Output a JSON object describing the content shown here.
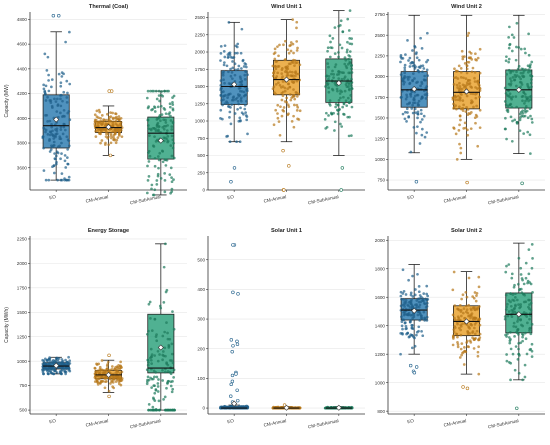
{
  "chart_data": [
    {
      "type": "box",
      "title": "Thermal (Coal)",
      "ylabel": "Capacity (MW)",
      "categories": [
        "EO",
        "CM-Annual",
        "CM-SubAnnual"
      ],
      "ylim": [
        3420,
        4860
      ],
      "yticks": [
        3600,
        3800,
        4000,
        4200,
        4400,
        4600,
        4800
      ],
      "series": [
        {
          "category": "EO",
          "whisker_low": 3500,
          "q1": 3760,
          "median": 3940,
          "q3": 4190,
          "whisker_high": 4700,
          "mean": 3990,
          "outliers": [
            4830,
            4830
          ]
        },
        {
          "category": "CM-Annual",
          "whisker_low": 3700,
          "q1": 3885,
          "median": 3925,
          "q3": 3975,
          "whisker_high": 4100,
          "mean": 3930,
          "outliers": [
            4220,
            4220,
            3700
          ]
        },
        {
          "category": "CM-SubAnnual",
          "whisker_low": 3380,
          "q1": 3670,
          "median": 3880,
          "q3": 4010,
          "whisker_high": 4220,
          "mean": 3820,
          "outliers": []
        }
      ]
    },
    {
      "type": "box",
      "title": "Wind Unit 1",
      "ylabel": "",
      "categories": [
        "EO",
        "CM-Annual",
        "CM-SubAnnual"
      ],
      "ylim": [
        0,
        2580
      ],
      "yticks": [
        0,
        250,
        500,
        750,
        1000,
        1250,
        1500,
        1750,
        2000,
        2250,
        2500
      ],
      "series": [
        {
          "category": "EO",
          "whisker_low": 700,
          "q1": 1240,
          "median": 1500,
          "q3": 1730,
          "whisker_high": 2430,
          "mean": 1530,
          "outliers": [
            120,
            320
          ]
        },
        {
          "category": "CM-Annual",
          "whisker_low": 700,
          "q1": 1380,
          "median": 1600,
          "q3": 1880,
          "whisker_high": 2470,
          "mean": 1600,
          "outliers": [
            0,
            0,
            350,
            570
          ]
        },
        {
          "category": "CM-SubAnnual",
          "whisker_low": 500,
          "q1": 1270,
          "median": 1580,
          "q3": 1900,
          "whisker_high": 2600,
          "mean": 1550,
          "outliers": [
            0,
            320
          ]
        }
      ]
    },
    {
      "type": "box",
      "title": "Wind Unit 2",
      "ylabel": "",
      "categories": [
        "EO",
        "CM-Annual",
        "CM-SubAnnual"
      ],
      "ylim": [
        630,
        2780
      ],
      "yticks": [
        750,
        1000,
        1250,
        1500,
        1750,
        2000,
        2250,
        2500,
        2750
      ],
      "series": [
        {
          "category": "EO",
          "whisker_low": 1080,
          "q1": 1630,
          "median": 1840,
          "q3": 2060,
          "whisker_high": 2740,
          "mean": 1850,
          "outliers": [
            730
          ]
        },
        {
          "category": "CM-Annual",
          "whisker_low": 1000,
          "q1": 1610,
          "median": 1810,
          "q3": 2060,
          "whisker_high": 2740,
          "mean": 1820,
          "outliers": [
            720
          ]
        },
        {
          "category": "CM-SubAnnual",
          "whisker_low": 1070,
          "q1": 1620,
          "median": 1840,
          "q3": 2080,
          "whisker_high": 2740,
          "mean": 1840,
          "outliers": [
            710
          ]
        }
      ]
    },
    {
      "type": "box",
      "title": "Energy Storage",
      "ylabel": "Capacity (MWh)",
      "categories": [
        "EO",
        "CM-Annual",
        "CM-SubAnnual"
      ],
      "ylim": [
        460,
        2280
      ],
      "yticks": [
        500,
        750,
        1000,
        1250,
        1500,
        1750,
        2000,
        2250
      ],
      "series": [
        {
          "category": "EO",
          "whisker_low": 870,
          "q1": 920,
          "median": 950,
          "q3": 985,
          "whisker_high": 1040,
          "mean": 955,
          "outliers": []
        },
        {
          "category": "CM-Annual",
          "whisker_low": 680,
          "q1": 820,
          "median": 860,
          "q3": 905,
          "whisker_high": 1010,
          "mean": 860,
          "outliers": [
            1060,
            640
          ]
        },
        {
          "category": "CM-SubAnnual",
          "whisker_low": 500,
          "q1": 880,
          "median": 930,
          "q3": 1480,
          "whisker_high": 2200,
          "mean": 1140,
          "outliers": []
        }
      ]
    },
    {
      "type": "box",
      "title": "Solar Unit 1",
      "ylabel": "",
      "categories": [
        "EO",
        "CM-Annual",
        "CM-SubAnnual"
      ],
      "ylim": [
        -20,
        580
      ],
      "yticks": [
        0,
        100,
        200,
        300,
        400,
        500
      ],
      "series": [
        {
          "category": "EO",
          "whisker_low": 0,
          "q1": 0,
          "median": 0,
          "q3": 5,
          "whisker_high": 10,
          "mean": 15,
          "outliers": [
            550,
            550,
            390,
            385,
            230,
            225,
            215,
            210,
            190,
            120,
            115,
            110,
            90,
            80,
            60,
            40,
            25,
            20
          ]
        },
        {
          "category": "CM-Annual",
          "whisker_low": 0,
          "q1": 0,
          "median": 0,
          "q3": 2,
          "whisker_high": 5,
          "mean": 1,
          "outliers": [
            10
          ]
        },
        {
          "category": "CM-SubAnnual",
          "whisker_low": 0,
          "q1": 0,
          "median": 0,
          "q3": 2,
          "whisker_high": 5,
          "mean": 1,
          "outliers": []
        }
      ]
    },
    {
      "type": "box",
      "title": "Solar Unit 2",
      "ylabel": "",
      "categories": [
        "EO",
        "CM-Annual",
        "CM-SubAnnual"
      ],
      "ylim": [
        780,
        2030
      ],
      "yticks": [
        800,
        1000,
        1200,
        1400,
        1600,
        1800,
        2000
      ],
      "series": [
        {
          "category": "EO",
          "whisker_low": 1200,
          "q1": 1440,
          "median": 1510,
          "q3": 1590,
          "whisker_high": 1830,
          "mean": 1505,
          "outliers": [
            1080,
            1070,
            1120,
            1110
          ]
        },
        {
          "category": "CM-Annual",
          "whisker_low": 1060,
          "q1": 1330,
          "median": 1430,
          "q3": 1540,
          "whisker_high": 1780,
          "mean": 1430,
          "outliers": [
            970,
            960
          ]
        },
        {
          "category": "CM-SubAnnual",
          "whisker_low": 1020,
          "q1": 1350,
          "median": 1480,
          "q3": 1630,
          "whisker_high": 1980,
          "mean": 1480,
          "outliers": [
            820
          ]
        }
      ]
    }
  ],
  "colors": {
    "EO": "#2a7ab0",
    "CM-Annual": "#e8a02a",
    "CM-SubAnnual": "#2aa07a",
    "EO_dot": "#1f5f8a",
    "CM-Annual_dot": "#b7781a",
    "CM-SubAnnual_dot": "#1e7a5c",
    "grid": "#e6e6e6",
    "axis": "#333333"
  }
}
